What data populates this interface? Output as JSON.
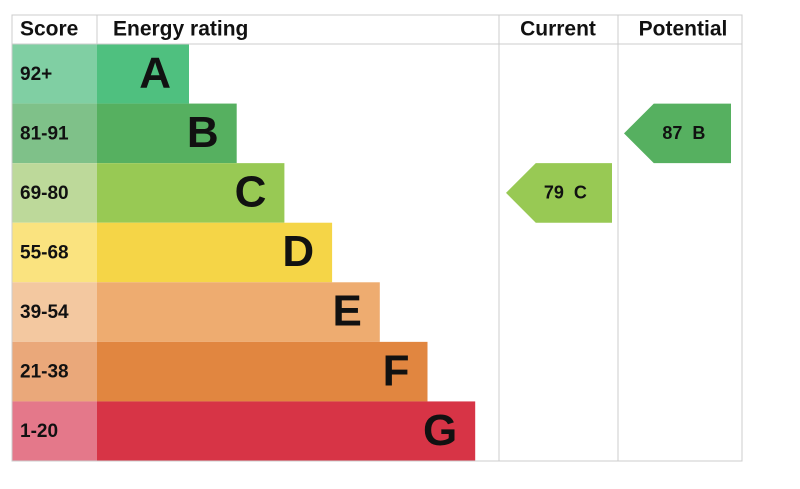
{
  "headers": {
    "score": "Score",
    "rating": "Energy rating",
    "current": "Current",
    "potential": "Potential"
  },
  "bands": [
    {
      "score": "92+",
      "letter": "A",
      "color": "#4fc07f",
      "score_color": "#80cfa3"
    },
    {
      "score": "81-91",
      "letter": "B",
      "color": "#56b060",
      "score_color": "#7fc189"
    },
    {
      "score": "69-80",
      "letter": "C",
      "color": "#98c954",
      "score_color": "#bdd99a"
    },
    {
      "score": "55-68",
      "letter": "D",
      "color": "#f5d547",
      "score_color": "#fae37f"
    },
    {
      "score": "39-54",
      "letter": "E",
      "color": "#eeac70",
      "score_color": "#f3c8a0"
    },
    {
      "score": "21-38",
      "letter": "F",
      "color": "#e18640",
      "score_color": "#eaa87a"
    },
    {
      "score": "1-20",
      "letter": "G",
      "color": "#d73446",
      "score_color": "#e4788a"
    }
  ],
  "current": {
    "value": 79,
    "letter": "C"
  },
  "potential": {
    "value": 87,
    "letter": "B"
  }
}
